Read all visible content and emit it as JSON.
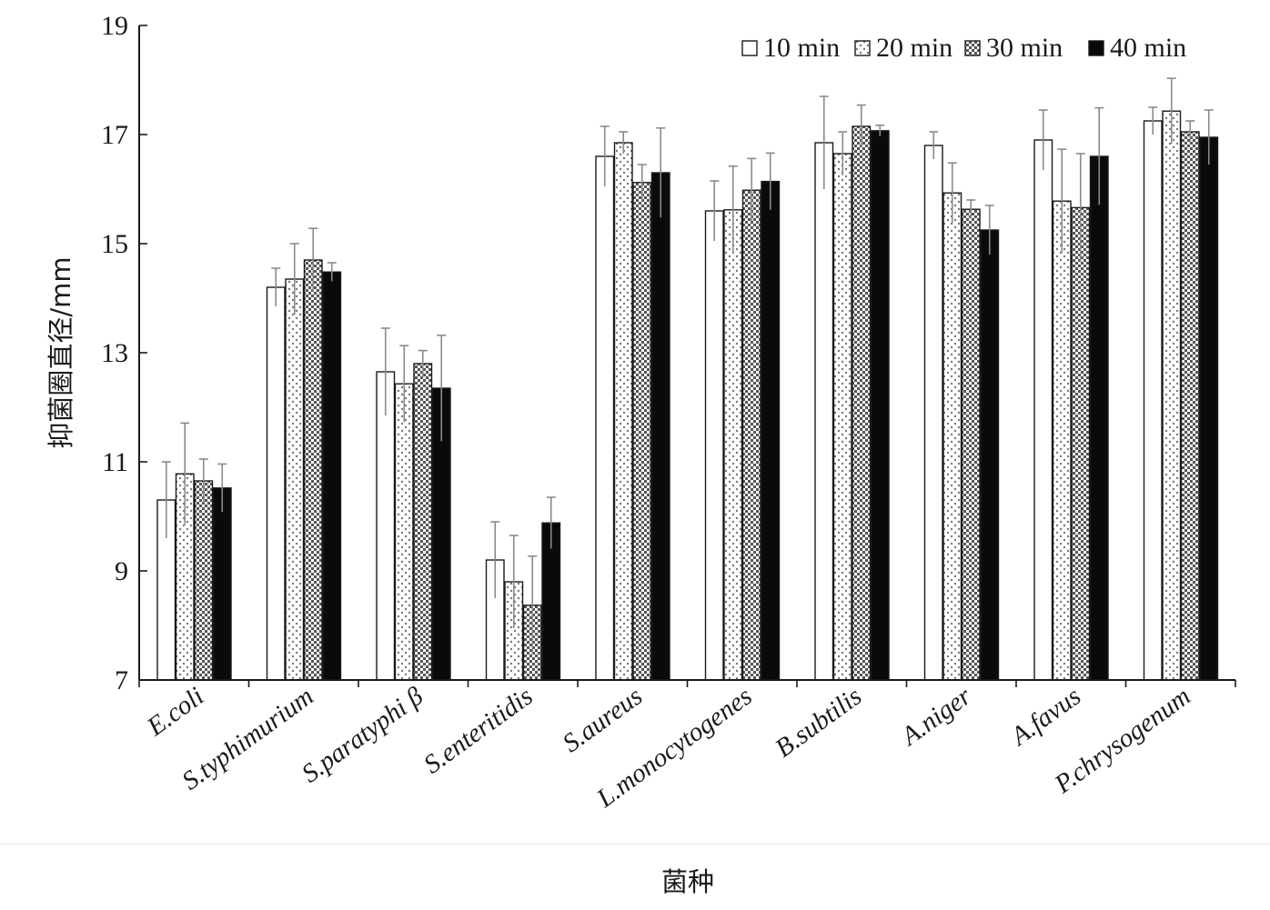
{
  "chart_data": {
    "type": "bar",
    "xlabel": "菌种",
    "ylabel": "抑菌圈直径/mm",
    "ylim": [
      7,
      19
    ],
    "yticks": [
      7,
      9,
      11,
      13,
      15,
      17,
      19
    ],
    "grid": false,
    "legend_position": "top-right",
    "categories": [
      "E.coli",
      "S.typhimurium",
      "S.paratyphi β",
      "S.enteritidis",
      "S.aureus",
      "L.monocytogenes",
      "B.subtilis",
      "A.niger",
      "A.favus",
      "P.chrysogenum"
    ],
    "series": [
      {
        "name": "10 min",
        "pattern": "plain-white",
        "values": [
          10.3,
          14.2,
          12.65,
          9.2,
          16.6,
          15.6,
          16.85,
          16.8,
          16.9,
          17.25
        ],
        "errors": [
          0.7,
          0.35,
          0.8,
          0.7,
          0.55,
          0.55,
          0.85,
          0.25,
          0.55,
          0.25
        ]
      },
      {
        "name": "20 min",
        "pattern": "white-dotted",
        "values": [
          10.78,
          14.35,
          12.43,
          8.8,
          16.85,
          15.62,
          16.65,
          15.93,
          15.78,
          17.43
        ],
        "errors": [
          0.93,
          0.65,
          0.7,
          0.85,
          0.2,
          0.8,
          0.4,
          0.55,
          0.95,
          0.6
        ]
      },
      {
        "name": "30 min",
        "pattern": "gray-checkered",
        "values": [
          10.65,
          14.7,
          12.8,
          8.37,
          16.12,
          15.98,
          17.15,
          15.63,
          15.66,
          17.05
        ],
        "errors": [
          0.4,
          0.58,
          0.24,
          0.9,
          0.33,
          0.58,
          0.39,
          0.17,
          0.99,
          0.2
        ]
      },
      {
        "name": "40 min",
        "pattern": "solid-black",
        "values": [
          10.52,
          14.48,
          12.35,
          9.88,
          16.3,
          16.14,
          17.07,
          15.25,
          16.6,
          16.95
        ],
        "errors": [
          0.44,
          0.17,
          0.97,
          0.47,
          0.82,
          0.52,
          0.1,
          0.45,
          0.89,
          0.5
        ]
      }
    ]
  },
  "colors": {
    "axis": "#1a1a1a",
    "bar_outline": "#1a1a1a",
    "dotted_fill": "#ffffff",
    "dotted_dot": "#777777",
    "checker_dark": "#555555",
    "checker_light": "#ffffff",
    "solid": "#0a0a0a",
    "error_bar": "#8a8a8a"
  }
}
